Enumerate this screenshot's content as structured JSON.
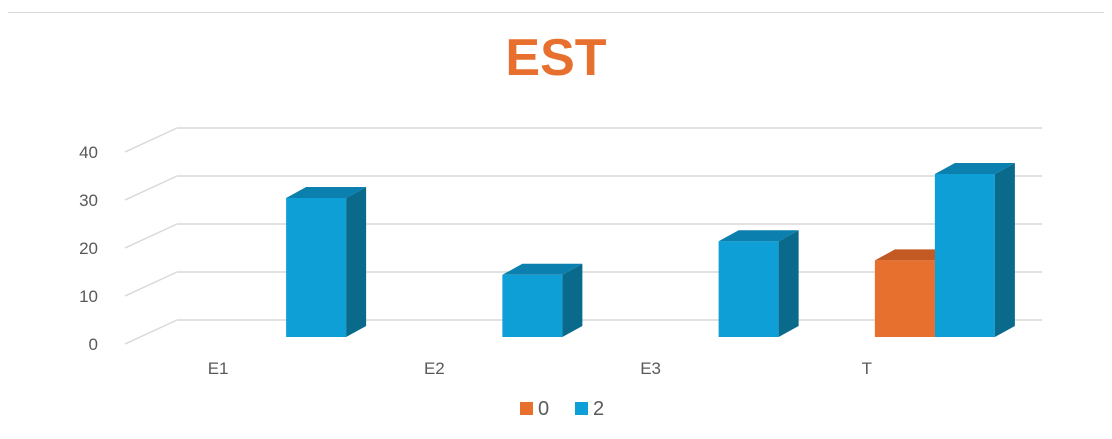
{
  "chart_data": {
    "type": "bar",
    "title": "EST",
    "categories": [
      "E1",
      "E2",
      "E3",
      "T"
    ],
    "series": [
      {
        "name": "0",
        "values": [
          null,
          null,
          null,
          17
        ],
        "color": "#e8702f",
        "side_color": "#a9501f",
        "top_color": "#c45a23"
      },
      {
        "name": "2",
        "values": [
          30,
          14,
          21,
          35
        ],
        "color": "#0e9fd6",
        "side_color": "#0a6a8c",
        "top_color": "#0b7fae"
      }
    ],
    "ylim": [
      0,
      40
    ],
    "yticks": [
      "0",
      "10",
      "20",
      "30",
      "40"
    ],
    "grid": true,
    "legend": "bottom",
    "three_d": true
  }
}
